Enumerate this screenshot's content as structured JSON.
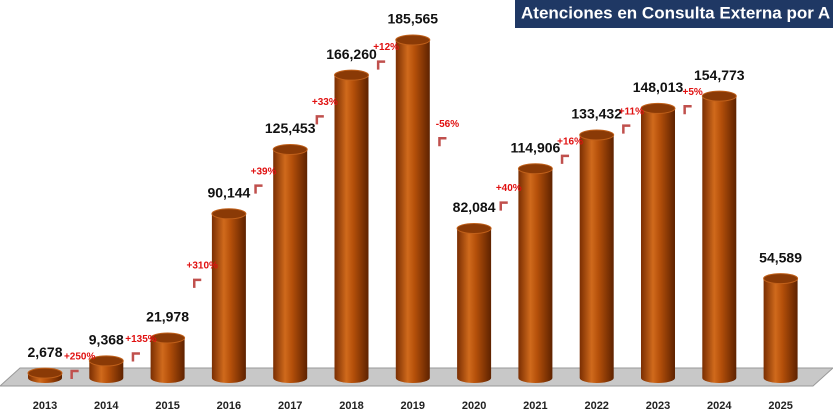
{
  "chart_data": {
    "type": "bar",
    "title": "Atenciones en Consulta Externa por A",
    "categories": [
      "2013",
      "2014",
      "2015",
      "2016",
      "2017",
      "2018",
      "2019",
      "2020",
      "2021",
      "2022",
      "2023",
      "2024",
      "2025"
    ],
    "values": [
      2678,
      9368,
      21978,
      90144,
      125453,
      166260,
      185565,
      82084,
      114906,
      133432,
      148013,
      154773,
      54589
    ],
    "value_labels": [
      "2,678",
      "9,368",
      "21,978",
      "90,144",
      "125,453",
      "166,260",
      "185,565",
      "82,084",
      "114,906",
      "133,432",
      "148,013",
      "154,773",
      "54,589"
    ],
    "growth_labels": [
      "+250%",
      "+135%",
      "+310%",
      "+39%",
      "+33%",
      "+12%",
      "-56%",
      "+40%",
      "+16%",
      "+11%",
      "+5%"
    ],
    "color": "#b5500a"
  }
}
